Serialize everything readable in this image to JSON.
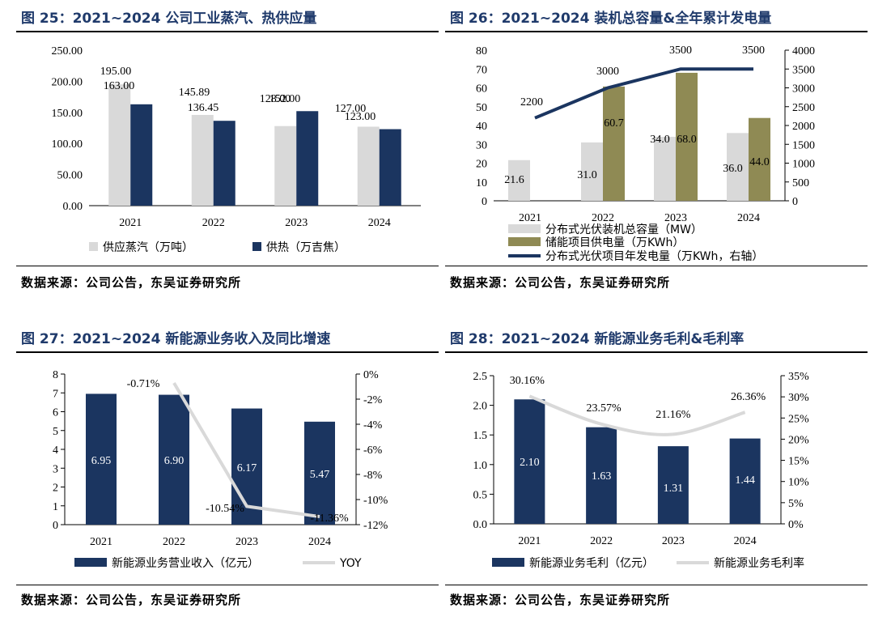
{
  "panels": [
    {
      "title": "图 25：2021~2024 公司工业蒸汽、热供应量",
      "source": "数据来源：公司公告，东吴证券研究所"
    },
    {
      "title": "图 26：2021~2024 装机总容量&全年累计发电量",
      "source": "数据来源：公司公告，东吴证券研究所"
    },
    {
      "title": "图 27：2021~2024 新能源业务收入及同比增速",
      "source": "数据来源：公司公告，东吴证券研究所"
    },
    {
      "title": "图 28：2021~2024 新能源业务毛利&毛利率",
      "source": "数据来源：公司公告，东吴证券研究所"
    }
  ],
  "colors": {
    "gray": "#d9d9d9",
    "navy": "#1b3560",
    "olive": "#8f8a54",
    "lightline": "#d9d9d9",
    "title": "#1f3a6b"
  },
  "chart_data": [
    {
      "type": "bar",
      "categories": [
        "2021",
        "2022",
        "2023",
        "2024"
      ],
      "series": [
        {
          "name": "供应蒸汽（万吨）",
          "values": [
            195.0,
            145.89,
            128.0,
            127.0
          ],
          "labels": [
            "195.00",
            "145.89",
            "128.00",
            "127.00"
          ]
        },
        {
          "name": "供热（万吉焦）",
          "values": [
            163.0,
            136.45,
            152.0,
            123.0
          ],
          "labels": [
            "163.00",
            "136.45",
            "152.00",
            "123.00"
          ]
        }
      ],
      "ylim": [
        0,
        250
      ],
      "yticks": [
        "0.00",
        "50.00",
        "100.00",
        "150.00",
        "200.00",
        "250.00"
      ]
    },
    {
      "type": "bar",
      "categories": [
        "2021",
        "2022",
        "2023",
        "2024"
      ],
      "series": [
        {
          "name": "分布式光伏装机总容量（MW）",
          "values": [
            21.6,
            31.0,
            34.0,
            36.0
          ],
          "labels": [
            "21.6",
            "31.0",
            "34.0",
            "36.0"
          ]
        },
        {
          "name": "储能项目供电量（万KWh）",
          "values": [
            null,
            60.7,
            68.0,
            44.0
          ],
          "labels": [
            "",
            "60.7",
            "68.0",
            "44.0"
          ]
        },
        {
          "name": "分布式光伏项目年发电量（万KWh，右轴）",
          "type": "line",
          "axis": "right",
          "values": [
            2200,
            3000,
            3500,
            3500
          ],
          "labels": [
            "2200",
            "3000",
            "3500",
            "3500"
          ]
        }
      ],
      "ylim": [
        0,
        80
      ],
      "yticks": [
        "0",
        "10",
        "20",
        "30",
        "40",
        "50",
        "60",
        "70",
        "80"
      ],
      "y2lim": [
        0,
        4000
      ],
      "y2ticks": [
        "0",
        "500",
        "1000",
        "1500",
        "2000",
        "2500",
        "3000",
        "3500",
        "4000"
      ]
    },
    {
      "type": "bar",
      "categories": [
        "2021",
        "2022",
        "2023",
        "2024"
      ],
      "series": [
        {
          "name": "新能源业务营业收入（亿元）",
          "values": [
            6.95,
            6.9,
            6.17,
            5.47
          ],
          "labels": [
            "6.95",
            "6.90",
            "6.17",
            "5.47"
          ]
        },
        {
          "name": "YOY",
          "type": "line",
          "axis": "right",
          "values": [
            null,
            -0.71,
            -10.54,
            -11.36
          ],
          "labels": [
            "",
            "-0.71%",
            "-10.54%",
            "-11.36%"
          ]
        }
      ],
      "ylim": [
        0,
        8
      ],
      "yticks": [
        "0",
        "1",
        "2",
        "3",
        "4",
        "5",
        "6",
        "7",
        "8"
      ],
      "y2lim": [
        -12,
        0
      ],
      "y2ticks": [
        "-12%",
        "-10%",
        "-8%",
        "-6%",
        "-4%",
        "-2%",
        "0%"
      ]
    },
    {
      "type": "bar",
      "categories": [
        "2021",
        "2022",
        "2023",
        "2024"
      ],
      "series": [
        {
          "name": "新能源业务毛利（亿元）",
          "values": [
            2.1,
            1.63,
            1.31,
            1.44
          ],
          "labels": [
            "2.10",
            "1.63",
            "1.31",
            "1.44"
          ]
        },
        {
          "name": "新能源业务毛利率",
          "type": "line",
          "axis": "right",
          "values": [
            30.16,
            23.57,
            21.16,
            26.36
          ],
          "labels": [
            "30.16%",
            "23.57%",
            "21.16%",
            "26.36%"
          ]
        }
      ],
      "ylim": [
        0,
        2.5
      ],
      "yticks": [
        "0.0",
        "0.5",
        "1.0",
        "1.5",
        "2.0",
        "2.5"
      ],
      "y2lim": [
        0,
        35
      ],
      "y2ticks": [
        "0%",
        "5%",
        "10%",
        "15%",
        "20%",
        "25%",
        "30%",
        "35%"
      ]
    }
  ]
}
